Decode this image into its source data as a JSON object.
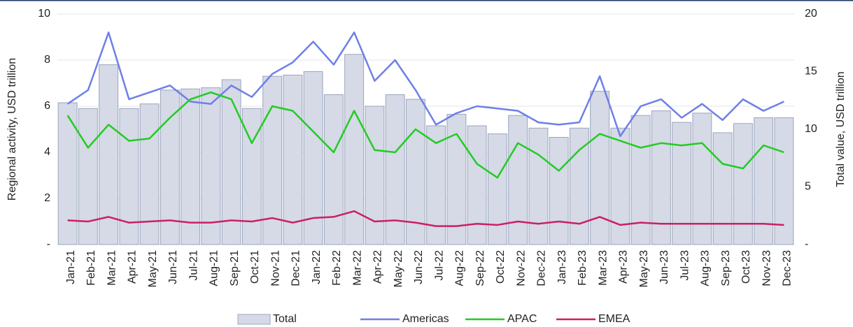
{
  "chart_data": {
    "type": "bar",
    "y_label": "Regional activity, USD trillion",
    "y2_label": "Total value, USD trillion",
    "categories": [
      "Jan-21",
      "Feb-21",
      "Mar-21",
      "Apr-21",
      "May-21",
      "Jun-21",
      "Jul-21",
      "Aug-21",
      "Sep-21",
      "Oct-21",
      "Nov-21",
      "Dec-21",
      "Jan-22",
      "Feb-22",
      "Mar-22",
      "Apr-22",
      "May-22",
      "Jun-22",
      "Jul-22",
      "Aug-22",
      "Sep-22",
      "Oct-22",
      "Nov-22",
      "Dec-22",
      "Jan-23",
      "Feb-23",
      "Mar-23",
      "Apr-23",
      "May-23",
      "Jun-23",
      "Jul-23",
      "Aug-23",
      "Sep-23",
      "Oct-23",
      "Nov-23",
      "Dec-23"
    ],
    "series": [
      {
        "name": "Total",
        "type": "bar",
        "axis": "y2",
        "color": "#d5dae6",
        "values": [
          12.3,
          11.8,
          15.6,
          11.8,
          12.2,
          13.4,
          13.5,
          13.6,
          14.3,
          11.8,
          14.6,
          14.7,
          15.0,
          13.0,
          16.5,
          12.0,
          13.0,
          12.6,
          10.3,
          11.3,
          10.3,
          9.6,
          11.2,
          10.1,
          9.3,
          10.1,
          13.3,
          10.1,
          11.2,
          11.6,
          10.6,
          11.4,
          9.7,
          10.5,
          11.0,
          11.0
        ]
      },
      {
        "name": "Americas",
        "type": "line",
        "color": "#6e7fe8",
        "values": [
          6.1,
          6.7,
          9.2,
          6.3,
          6.6,
          6.9,
          6.2,
          6.1,
          6.9,
          6.4,
          7.4,
          7.9,
          8.8,
          7.8,
          9.2,
          7.1,
          8.0,
          6.7,
          5.2,
          5.7,
          6.0,
          5.9,
          5.8,
          5.3,
          5.2,
          5.3,
          7.3,
          4.7,
          6.0,
          6.3,
          5.5,
          6.1,
          5.4,
          6.3,
          5.8,
          6.2
        ]
      },
      {
        "name": "APAC",
        "type": "line",
        "color": "#22cc22",
        "values": [
          5.6,
          4.2,
          5.2,
          4.5,
          4.6,
          5.5,
          6.3,
          6.6,
          6.3,
          4.4,
          6.0,
          5.8,
          4.9,
          4.0,
          5.8,
          4.1,
          4.0,
          5.0,
          4.4,
          4.8,
          3.5,
          2.9,
          4.4,
          3.9,
          3.2,
          4.1,
          4.8,
          4.5,
          4.2,
          4.4,
          4.3,
          4.4,
          3.5,
          3.3,
          4.3,
          4.0
        ]
      },
      {
        "name": "EMEA",
        "type": "line",
        "color": "#cc1f63",
        "values": [
          1.05,
          1.0,
          1.2,
          0.95,
          1.0,
          1.05,
          0.95,
          0.95,
          1.05,
          1.0,
          1.15,
          0.95,
          1.15,
          1.2,
          1.45,
          1.0,
          1.05,
          0.95,
          0.8,
          0.8,
          0.9,
          0.85,
          1.0,
          0.9,
          1.0,
          0.9,
          1.2,
          0.85,
          0.95,
          0.9,
          0.9,
          0.9,
          0.9,
          0.9,
          0.9,
          0.85
        ]
      }
    ],
    "ylim": [
      0,
      10
    ],
    "yticks": [
      {
        "value": 0,
        "label": "-"
      },
      2,
      4,
      6,
      8,
      10
    ],
    "y2lim": [
      0,
      20
    ],
    "y2ticks": [
      {
        "value": 0,
        "label": "-"
      },
      5,
      10,
      15,
      20
    ],
    "grid": true,
    "legend": "bottom"
  }
}
